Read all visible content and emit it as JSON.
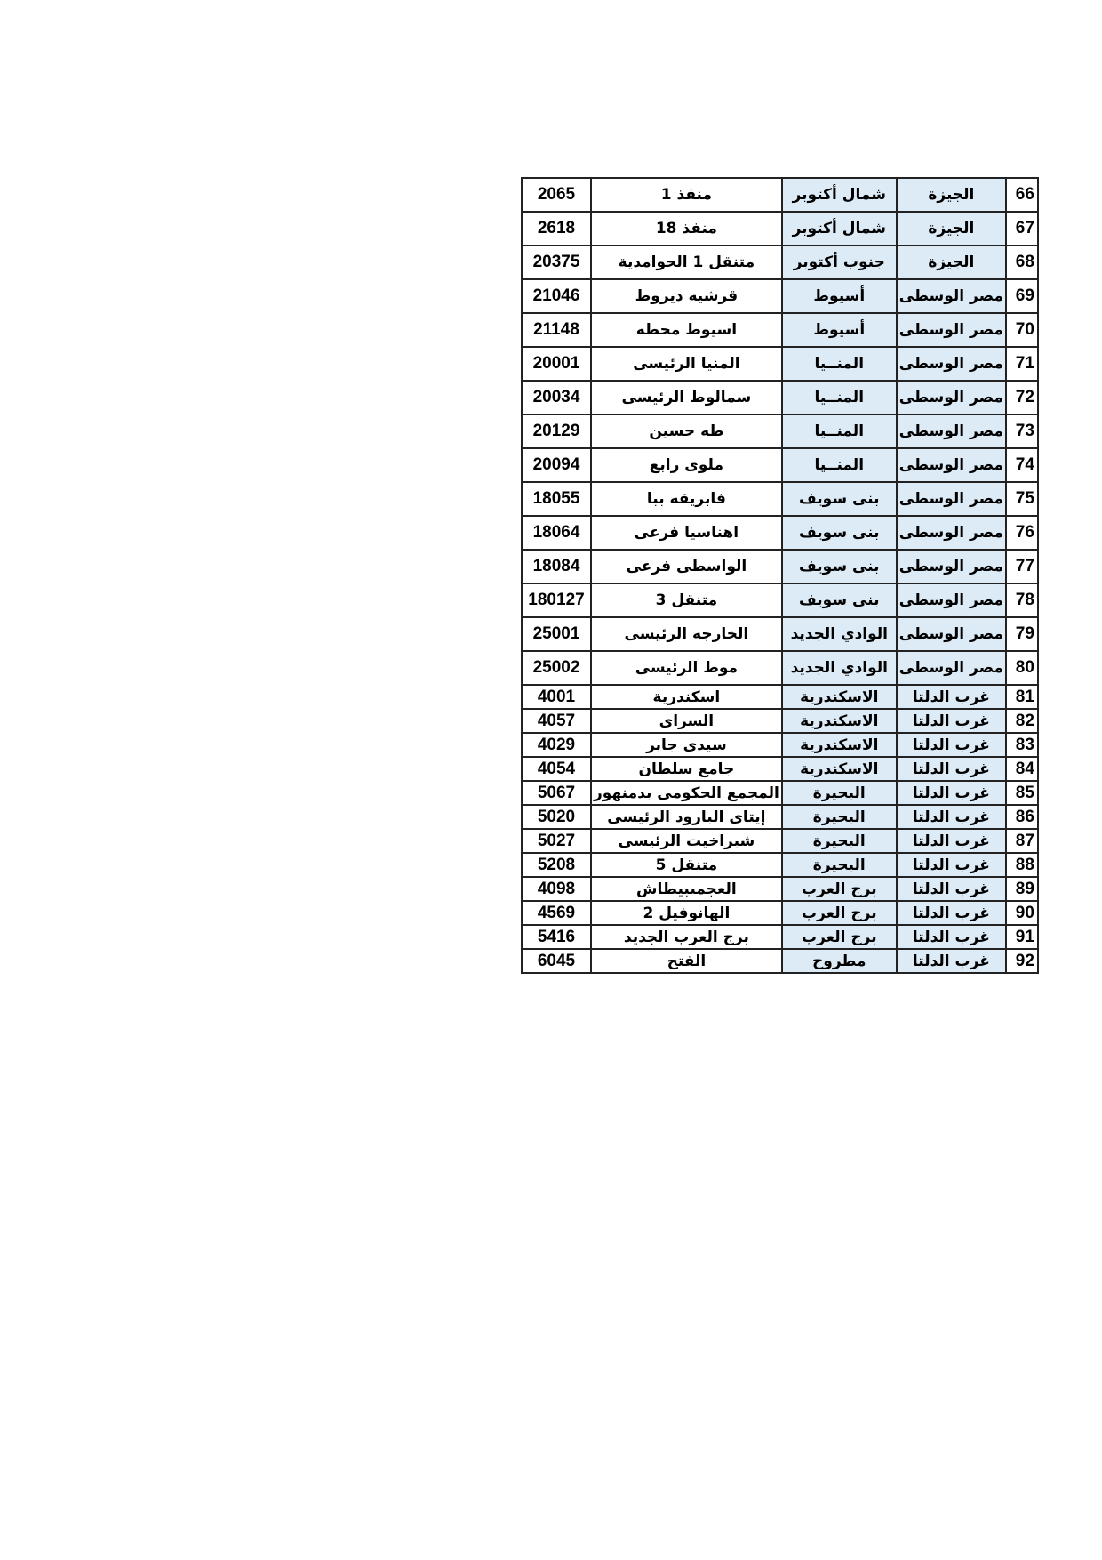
{
  "table": {
    "rows": [
      {
        "idx": "66",
        "region": "الجيزة",
        "gov": "شمال أكتوبر",
        "name": "منفذ 1",
        "code": "2065"
      },
      {
        "idx": "67",
        "region": "الجيزة",
        "gov": "شمال أكتوبر",
        "name": "منفذ 18",
        "code": "2618"
      },
      {
        "idx": "68",
        "region": "الجيزة",
        "gov": "جنوب أكتوبر",
        "name": "متنقل 1 الحوامدية",
        "code": "20375"
      },
      {
        "idx": "69",
        "region": "مصر الوسطى",
        "gov": "أسيوط",
        "name": "قرشيه ديروط",
        "code": "21046"
      },
      {
        "idx": "70",
        "region": "مصر الوسطى",
        "gov": "أسيوط",
        "name": "اسيوط محطه",
        "code": "21148"
      },
      {
        "idx": "71",
        "region": "مصر الوسطى",
        "gov": "المنــيا",
        "name": "المنيا الرئيسى",
        "code": "20001"
      },
      {
        "idx": "72",
        "region": "مصر الوسطى",
        "gov": "المنــيا",
        "name": "سمالوط الرئيسى",
        "code": "20034"
      },
      {
        "idx": "73",
        "region": "مصر الوسطى",
        "gov": "المنــيا",
        "name": "طه حسين",
        "code": "20129"
      },
      {
        "idx": "74",
        "region": "مصر الوسطى",
        "gov": "المنــيا",
        "name": "ملوى رابع",
        "code": "20094"
      },
      {
        "idx": "75",
        "region": "مصر الوسطى",
        "gov": "بنى سويف",
        "name": "فابريقه ببا",
        "code": "18055"
      },
      {
        "idx": "76",
        "region": "مصر الوسطى",
        "gov": "بنى سويف",
        "name": "اهناسيا فرعى",
        "code": "18064"
      },
      {
        "idx": "77",
        "region": "مصر الوسطى",
        "gov": "بنى سويف",
        "name": "الواسطى فرعى",
        "code": "18084"
      },
      {
        "idx": "78",
        "region": "مصر الوسطى",
        "gov": "بنى سويف",
        "name": "متنقل  3",
        "code": "180127"
      },
      {
        "idx": "79",
        "region": "مصر الوسطى",
        "gov": "الوادي الجديد",
        "name": "الخارجه الرئيسى",
        "code": "25001"
      },
      {
        "idx": "80",
        "region": "مصر الوسطى",
        "gov": "الوادي الجديد",
        "name": "موط الرئيسى",
        "code": "25002"
      },
      {
        "idx": "81",
        "region": "غرب الدلتا",
        "gov": "الاسكندرية",
        "name": "اسكندرية",
        "code": "4001"
      },
      {
        "idx": "82",
        "region": "غرب الدلتا",
        "gov": "الاسكندرية",
        "name": "السراى",
        "code": "4057"
      },
      {
        "idx": "83",
        "region": "غرب الدلتا",
        "gov": "الاسكندرية",
        "name": "سيدى جابر",
        "code": "4029"
      },
      {
        "idx": "84",
        "region": "غرب الدلتا",
        "gov": "الاسكندرية",
        "name": "جامع سلطان",
        "code": "4054"
      },
      {
        "idx": "85",
        "region": "غرب الدلتا",
        "gov": "البحيرة",
        "name": "المجمع الحكومى بدمنهور",
        "code": "5067"
      },
      {
        "idx": "86",
        "region": "غرب الدلتا",
        "gov": "البحيرة",
        "name": "إيتاى البارود الرئيسى",
        "code": "5020"
      },
      {
        "idx": "87",
        "region": "غرب الدلتا",
        "gov": "البحيرة",
        "name": "شبراخيت الرئيسى",
        "code": "5027"
      },
      {
        "idx": "88",
        "region": "غرب الدلتا",
        "gov": "البحيرة",
        "name": "متنقل 5",
        "code": "5208"
      },
      {
        "idx": "89",
        "region": "غرب الدلتا",
        "gov": "برج العرب",
        "name": "العجمىبيطاش",
        "code": "4098"
      },
      {
        "idx": "90",
        "region": "غرب الدلتا",
        "gov": "برج العرب",
        "name": "الهانوفيل 2",
        "code": "4569"
      },
      {
        "idx": "91",
        "region": "غرب الدلتا",
        "gov": "برج العرب",
        "name": "برج العرب الجديد",
        "code": "5416"
      },
      {
        "idx": "92",
        "region": "غرب الدلتا",
        "gov": "مطروح",
        "name": "الفتح",
        "code": "6045"
      }
    ]
  },
  "colors": {
    "shaded_column": "#ddebf7",
    "border": "#222222"
  }
}
